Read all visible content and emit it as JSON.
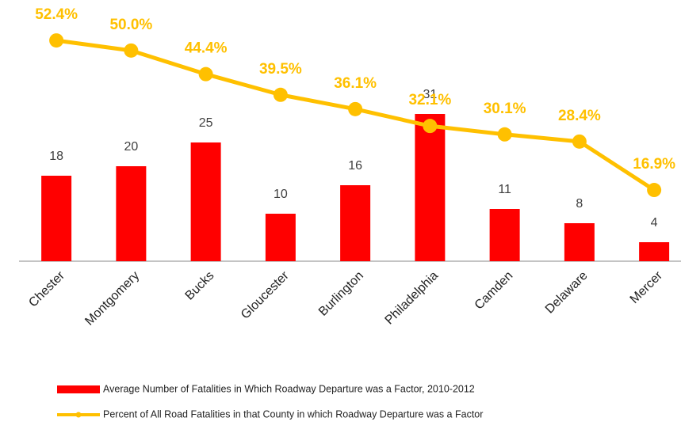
{
  "chart_data": {
    "type": "bar_line",
    "categories": [
      "Chester",
      "Montgomery",
      "Bucks",
      "Gloucester",
      "Burlington",
      "Philadelphia",
      "Camden",
      "Delaware",
      "Mercer"
    ],
    "series": [
      {
        "name": "Average Number of Fatalities in Which Roadway Departure  was a Factor, 2010-2012",
        "type": "bar",
        "color": "#ff0000",
        "values": [
          18,
          20,
          25,
          10,
          16,
          31,
          11,
          8,
          4
        ]
      },
      {
        "name": "Percent of All Road Fatalities in that County in which Roadway Departure was a Factor",
        "type": "line",
        "color": "#ffc000",
        "axis": "y2",
        "values": [
          52.4,
          50.0,
          44.4,
          39.5,
          36.1,
          32.1,
          30.1,
          28.4,
          16.9
        ],
        "value_labels": [
          "52.4%",
          "50.0%",
          "44.4%",
          "39.5%",
          "36.1%",
          "32.1%",
          "30.1%",
          "28.4%",
          "16.9%"
        ]
      }
    ],
    "ylim": [
      0,
      55
    ],
    "y2lim": [
      0,
      62
    ]
  }
}
